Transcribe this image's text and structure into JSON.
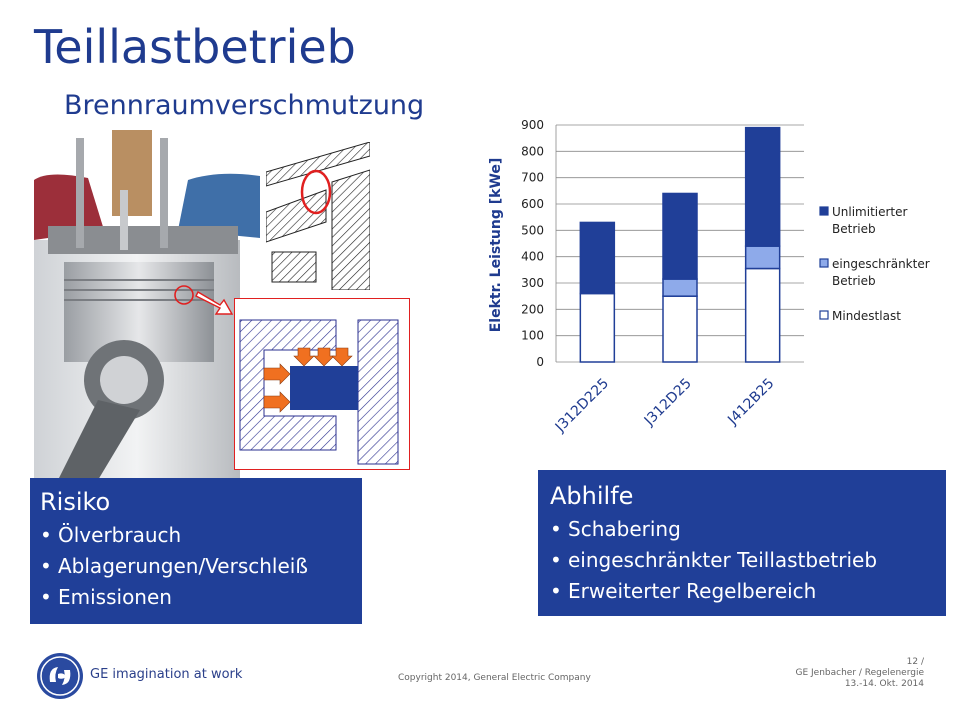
{
  "title": "Teillastbetrieb",
  "subtitle": "Brennraumverschmutzung",
  "risk_box": {
    "heading": "Risiko",
    "items": [
      "Ölverbrauch",
      "Ablagerungen/Verschleiß",
      "Emissionen"
    ]
  },
  "fix_box": {
    "heading": "Abhilfe",
    "items": [
      "Schabering",
      "eingeschränkter Teillastbetrieb",
      "Erweiterter Regelbereich"
    ]
  },
  "footer": {
    "tagline": "GE imagination at work",
    "copyright": "Copyright 2014, General Electric Company",
    "page": "12 /",
    "event": "GE Jenbacher / Regelenergie",
    "date": "13.-14. Okt. 2014"
  },
  "colors": {
    "brand_blue": "#1f3b8f",
    "box_blue": "#203f98",
    "series_unlimited": "#203f98",
    "series_restricted": "#8eaaea",
    "series_min": "#ffffff",
    "callout_red": "#e02020"
  },
  "chart_data": {
    "type": "bar",
    "stacked": true,
    "categories": [
      "J312D225",
      "J312D25",
      "J412B25"
    ],
    "series": [
      {
        "name": "Mindestlast",
        "values": [
          260,
          250,
          355
        ]
      },
      {
        "name": "eingeschränkter Betrieb",
        "values": [
          0,
          65,
          85
        ]
      },
      {
        "name": "Unlimitierter Betrieb",
        "values": [
          270,
          325,
          450
        ]
      }
    ],
    "ylabel": "Elektr. Leistung [kWe]",
    "ylim": [
      0,
      900
    ],
    "yticks": [
      0,
      100,
      200,
      300,
      400,
      500,
      600,
      700,
      800,
      900
    ],
    "legend_order": [
      "Unlimitierter Betrieb",
      "eingeschränkter Betrieb",
      "Mindestlast"
    ],
    "legend_lines": [
      [
        "Unlimitierter",
        "Betrieb"
      ],
      [
        "eingeschränkter",
        "Betrieb"
      ],
      [
        "Mindestlast"
      ]
    ],
    "legend_position": "right",
    "grid": true
  }
}
